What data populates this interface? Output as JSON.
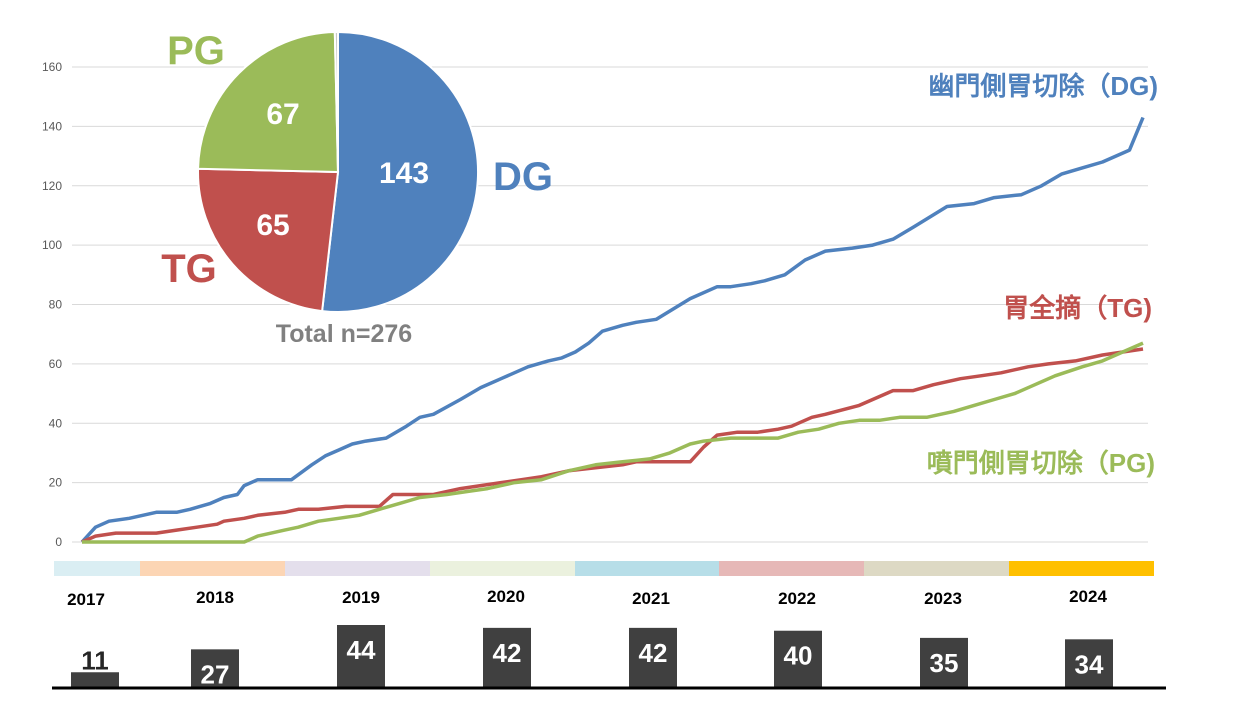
{
  "colors": {
    "dg": "#4f81bd",
    "tg": "#c0504d",
    "pg": "#9bbb59",
    "grid": "#d9d9d9",
    "axis_text": "#595959",
    "bar": "#404040",
    "total_text": "#808080"
  },
  "chart_data": [
    {
      "type": "line",
      "title": "",
      "xlabel": "",
      "ylabel": "",
      "y_ticks": [
        0,
        20,
        40,
        60,
        80,
        100,
        120,
        140,
        160
      ],
      "ylim": [
        0,
        165
      ],
      "xlim": [
        2017.0,
        2024.85
      ],
      "grid": true,
      "series": [
        {
          "key": "dg",
          "name": "幽門側胃切除（DG)",
          "color": "#4f81bd",
          "x": [
            2017.0,
            2017.1,
            2017.2,
            2017.35,
            2017.55,
            2017.7,
            2017.8,
            2017.95,
            2018.05,
            2018.15,
            2018.2,
            2018.3,
            2018.4,
            2018.55,
            2018.7,
            2018.8,
            2018.9,
            2019.0,
            2019.1,
            2019.25,
            2019.4,
            2019.5,
            2019.6,
            2019.8,
            2019.95,
            2020.1,
            2020.3,
            2020.45,
            2020.55,
            2020.65,
            2020.75,
            2020.85,
            2021.0,
            2021.1,
            2021.25,
            2021.5,
            2021.7,
            2021.8,
            2021.95,
            2022.05,
            2022.2,
            2022.35,
            2022.5,
            2022.7,
            2022.85,
            2023.0,
            2023.15,
            2023.4,
            2023.6,
            2023.75,
            2023.95,
            2024.1,
            2024.25,
            2024.4,
            2024.55,
            2024.75,
            2024.85
          ],
          "y": [
            0,
            5,
            7,
            8,
            10,
            10,
            11,
            13,
            15,
            16,
            19,
            21,
            21,
            21,
            26,
            29,
            31,
            33,
            34,
            35,
            39,
            42,
            43,
            48,
            52,
            55,
            59,
            61,
            62,
            64,
            67,
            71,
            73,
            74,
            75,
            82,
            86,
            86,
            87,
            88,
            90,
            95,
            98,
            99,
            100,
            102,
            106,
            113,
            114,
            116,
            117,
            120,
            124,
            126,
            128,
            132,
            143
          ]
        },
        {
          "key": "tg",
          "name": "胃全摘（TG)",
          "color": "#c0504d",
          "x": [
            2017.0,
            2017.1,
            2017.25,
            2017.5,
            2017.55,
            2017.7,
            2017.85,
            2018.0,
            2018.05,
            2018.2,
            2018.3,
            2018.5,
            2018.6,
            2018.75,
            2018.95,
            2019.05,
            2019.2,
            2019.3,
            2019.6,
            2019.8,
            2019.95,
            2020.1,
            2020.25,
            2020.4,
            2020.6,
            2020.8,
            2021.0,
            2021.1,
            2021.3,
            2021.5,
            2021.6,
            2021.7,
            2021.85,
            2022.0,
            2022.15,
            2022.25,
            2022.4,
            2022.5,
            2022.75,
            2022.85,
            2023.0,
            2023.15,
            2023.3,
            2023.5,
            2023.65,
            2023.8,
            2024.0,
            2024.15,
            2024.35,
            2024.55,
            2024.85
          ],
          "y": [
            0,
            2,
            3,
            3,
            3,
            4,
            5,
            6,
            7,
            8,
            9,
            10,
            11,
            11,
            12,
            12,
            12,
            16,
            16,
            18,
            19,
            20,
            21,
            22,
            24,
            25,
            26,
            27,
            27,
            27,
            32,
            36,
            37,
            37,
            38,
            39,
            42,
            43,
            46,
            48,
            51,
            51,
            53,
            55,
            56,
            57,
            59,
            60,
            61,
            63,
            65
          ]
        },
        {
          "key": "pg",
          "name": "噴門側胃切除（PG)",
          "color": "#9bbb59",
          "x": [
            2017.0,
            2017.6,
            2018.2,
            2018.3,
            2018.4,
            2018.5,
            2018.6,
            2018.75,
            2018.9,
            2019.05,
            2019.2,
            2019.35,
            2019.5,
            2019.7,
            2019.85,
            2020.0,
            2020.2,
            2020.4,
            2020.6,
            2020.8,
            2021.0,
            2021.2,
            2021.35,
            2021.5,
            2021.6,
            2021.8,
            2022.0,
            2022.15,
            2022.3,
            2022.45,
            2022.6,
            2022.75,
            2022.9,
            2023.05,
            2023.25,
            2023.45,
            2023.6,
            2023.75,
            2023.9,
            2024.05,
            2024.2,
            2024.4,
            2024.55,
            2024.7,
            2024.85
          ],
          "y": [
            0,
            0,
            0,
            2,
            3,
            4,
            5,
            7,
            8,
            9,
            11,
            13,
            15,
            16,
            17,
            18,
            20,
            21,
            24,
            26,
            27,
            28,
            30,
            33,
            34,
            35,
            35,
            35,
            37,
            38,
            40,
            41,
            41,
            42,
            42,
            44,
            46,
            48,
            50,
            53,
            56,
            59,
            61,
            64,
            67
          ]
        }
      ]
    },
    {
      "type": "pie",
      "title": "Total n=276",
      "slices": [
        {
          "key": "dg",
          "label": "DG",
          "value": 143,
          "color": "#4f81bd"
        },
        {
          "key": "tg",
          "label": "TG",
          "value": 65,
          "color": "#c0504d"
        },
        {
          "key": "pg",
          "label": "PG",
          "value": 67,
          "color": "#9bbb59"
        },
        {
          "key": "other",
          "label": "",
          "value": 1,
          "color": "#c9c9c9"
        }
      ]
    },
    {
      "type": "bar",
      "title": "",
      "categories": [
        "2017",
        "2018",
        "2019",
        "2020",
        "2021",
        "2022",
        "2023",
        "2024"
      ],
      "values": [
        11,
        27,
        44,
        42,
        42,
        40,
        35,
        34
      ],
      "year_band_colors": [
        "#daeef3",
        "#fcd5b4",
        "#e4dfec",
        "#ebf1de",
        "#b7dee8",
        "#e6b8b7",
        "#ddd9c4",
        "#ffc000"
      ]
    }
  ]
}
